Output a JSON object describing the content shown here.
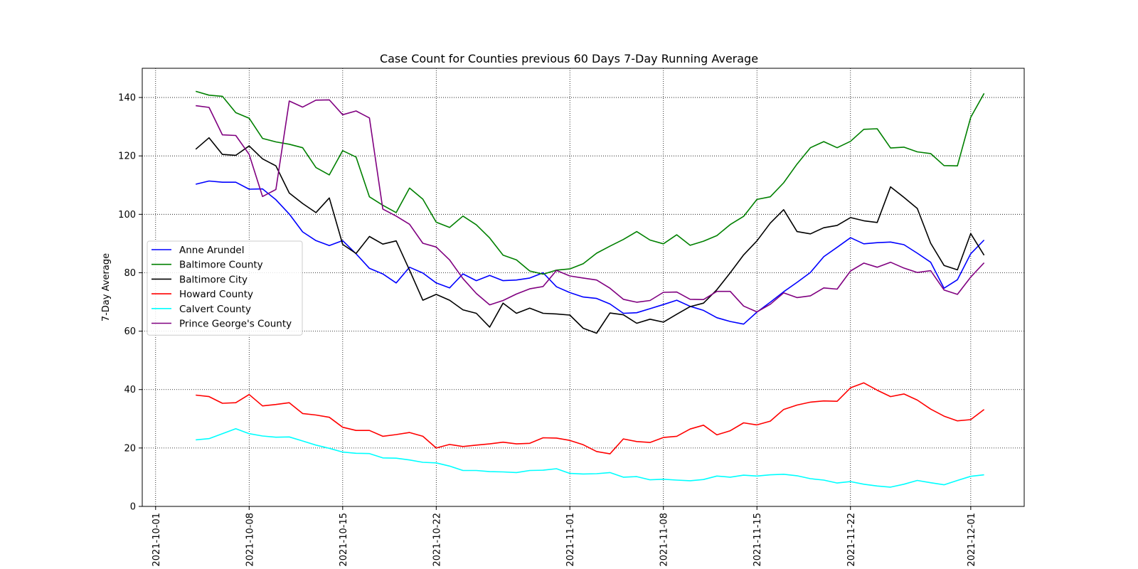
{
  "chart_data": {
    "type": "line",
    "title": "Case Count for Counties previous 60 Days 7-Day Running Average",
    "xlabel": "",
    "ylabel": "7-Day Average",
    "xlim": [
      "2021-09-30",
      "2021-12-05"
    ],
    "ylim": [
      0,
      150
    ],
    "grid": true,
    "grid_style": "dotted",
    "legend_position": "center-left",
    "x_ticks": [
      "2021-10-01",
      "2021-10-08",
      "2021-10-15",
      "2021-10-22",
      "2021-11-01",
      "2021-11-08",
      "2021-11-15",
      "2021-11-22",
      "2021-12-01"
    ],
    "y_ticks": [
      0,
      20,
      40,
      60,
      80,
      100,
      120,
      140
    ],
    "x": [
      "2021-10-04",
      "2021-10-05",
      "2021-10-06",
      "2021-10-07",
      "2021-10-08",
      "2021-10-09",
      "2021-10-10",
      "2021-10-11",
      "2021-10-12",
      "2021-10-13",
      "2021-10-14",
      "2021-10-15",
      "2021-10-16",
      "2021-10-17",
      "2021-10-18",
      "2021-10-19",
      "2021-10-20",
      "2021-10-21",
      "2021-10-22",
      "2021-10-23",
      "2021-10-24",
      "2021-10-25",
      "2021-10-26",
      "2021-10-27",
      "2021-10-28",
      "2021-10-29",
      "2021-10-30",
      "2021-10-31",
      "2021-11-01",
      "2021-11-02",
      "2021-11-03",
      "2021-11-04",
      "2021-11-05",
      "2021-11-06",
      "2021-11-07",
      "2021-11-08",
      "2021-11-09",
      "2021-11-10",
      "2021-11-11",
      "2021-11-12",
      "2021-11-13",
      "2021-11-14",
      "2021-11-15",
      "2021-11-16",
      "2021-11-17",
      "2021-11-18",
      "2021-11-19",
      "2021-11-20",
      "2021-11-21",
      "2021-11-22",
      "2021-11-23",
      "2021-11-24",
      "2021-11-25",
      "2021-11-26",
      "2021-11-27",
      "2021-11-28",
      "2021-11-29",
      "2021-11-30",
      "2021-12-01",
      "2021-12-02"
    ],
    "series": [
      {
        "name": "Anne Arundel",
        "color": "#0000ff",
        "values": [
          110.3,
          111.4,
          111.0,
          111.0,
          108.6,
          108.7,
          105.0,
          100.1,
          94.0,
          91.0,
          89.3,
          91.0,
          86.5,
          81.5,
          79.6,
          76.5,
          81.9,
          79.9,
          76.5,
          74.8,
          79.6,
          77.3,
          79.1,
          77.3,
          77.5,
          78.2,
          80.0,
          75.2,
          73.2,
          71.7,
          71.2,
          69.3,
          66.1,
          66.3,
          67.7,
          69.1,
          70.6,
          68.5,
          67.1,
          64.6,
          63.3,
          62.4,
          66.5,
          69.9,
          73.5,
          76.7,
          80.1,
          85.5,
          88.7,
          92.0,
          89.9,
          90.3,
          90.5,
          89.6,
          86.7,
          83.6,
          74.7,
          77.6,
          86.5,
          91.2
        ]
      },
      {
        "name": "Baltimore County",
        "color": "#008000",
        "values": [
          142.1,
          140.8,
          140.4,
          134.8,
          132.9,
          126.0,
          124.8,
          124.0,
          122.8,
          116.0,
          113.5,
          121.8,
          119.6,
          106.0,
          103.1,
          100.6,
          109.0,
          105.2,
          97.3,
          95.5,
          99.4,
          96.4,
          91.9,
          86.0,
          84.4,
          80.6,
          79.5,
          80.9,
          81.3,
          83.1,
          86.7,
          89.1,
          91.4,
          94.1,
          91.2,
          89.9,
          93.0,
          89.4,
          90.8,
          92.7,
          96.5,
          99.3,
          105.1,
          106.0,
          110.8,
          117.2,
          122.8,
          124.9,
          122.8,
          125.0,
          129.1,
          129.3,
          122.7,
          123.0,
          121.4,
          120.8,
          116.7,
          116.6,
          133.2,
          141.4
        ]
      },
      {
        "name": "Baltimore City",
        "color": "#000000",
        "values": [
          122.3,
          126.2,
          120.5,
          120.2,
          123.4,
          119.0,
          116.6,
          107.3,
          103.7,
          100.6,
          105.6,
          89.7,
          86.6,
          92.4,
          89.8,
          90.9,
          80.9,
          70.6,
          72.6,
          70.6,
          67.3,
          66.1,
          61.4,
          69.6,
          66.1,
          67.9,
          66.1,
          65.9,
          65.5,
          61.0,
          59.3,
          66.2,
          65.6,
          62.7,
          64.1,
          63.1,
          65.8,
          68.4,
          69.6,
          74.2,
          80.0,
          86.1,
          90.9,
          97.0,
          101.6,
          94.1,
          93.3,
          95.4,
          96.2,
          98.9,
          97.8,
          97.2,
          109.4,
          105.8,
          102.0,
          90.1,
          82.5,
          81.0,
          93.4,
          86.0
        ]
      },
      {
        "name": "Howard County",
        "color": "#ff0000",
        "values": [
          38.1,
          37.6,
          35.3,
          35.5,
          38.3,
          34.4,
          34.9,
          35.5,
          31.8,
          31.3,
          30.5,
          27.1,
          26.0,
          26.0,
          24.0,
          24.6,
          25.3,
          24.0,
          20.0,
          21.2,
          20.5,
          21.0,
          21.4,
          22.0,
          21.4,
          21.6,
          23.5,
          23.4,
          22.6,
          21.1,
          18.8,
          18.0,
          23.1,
          22.2,
          21.9,
          23.6,
          24.0,
          26.5,
          27.8,
          24.5,
          25.9,
          28.6,
          27.9,
          29.2,
          33.2,
          34.7,
          35.7,
          36.1,
          36.0,
          40.6,
          42.3,
          39.8,
          37.6,
          38.5,
          36.4,
          33.3,
          30.9,
          29.3,
          29.7,
          33.2
        ]
      },
      {
        "name": "Calvert County",
        "color": "#00ffff",
        "values": [
          22.8,
          23.2,
          24.9,
          26.6,
          24.9,
          24.1,
          23.7,
          23.8,
          22.4,
          21.0,
          19.9,
          18.6,
          18.2,
          18.1,
          16.6,
          16.5,
          15.9,
          15.1,
          14.9,
          13.8,
          12.3,
          12.3,
          11.9,
          11.8,
          11.6,
          12.3,
          12.4,
          12.9,
          11.3,
          11.1,
          11.2,
          11.6,
          10.0,
          10.2,
          9.1,
          9.3,
          9.0,
          8.8,
          9.2,
          10.4,
          10.0,
          10.7,
          10.4,
          10.8,
          11.0,
          10.5,
          9.5,
          9.0,
          8.0,
          8.5,
          7.6,
          7.0,
          6.6,
          7.6,
          8.9,
          8.1,
          7.4,
          8.9,
          10.3,
          10.8
        ]
      },
      {
        "name": "Prince George's County",
        "color": "#800080",
        "values": [
          137.2,
          136.6,
          127.2,
          127.0,
          120.5,
          106.1,
          108.5,
          138.8,
          136.7,
          139.1,
          139.2,
          134.1,
          135.4,
          133.0,
          101.8,
          99.4,
          96.6,
          90.1,
          88.8,
          84.4,
          78.0,
          72.9,
          69.0,
          70.5,
          72.7,
          74.5,
          75.3,
          80.8,
          78.9,
          78.2,
          77.5,
          74.7,
          70.9,
          69.9,
          70.5,
          73.3,
          73.4,
          70.9,
          70.8,
          73.6,
          73.6,
          68.6,
          66.6,
          69.2,
          73.1,
          71.5,
          72.1,
          74.8,
          74.4,
          80.6,
          83.3,
          81.9,
          83.6,
          81.6,
          80.1,
          80.7,
          74.1,
          72.6,
          78.5,
          83.4
        ]
      }
    ]
  }
}
